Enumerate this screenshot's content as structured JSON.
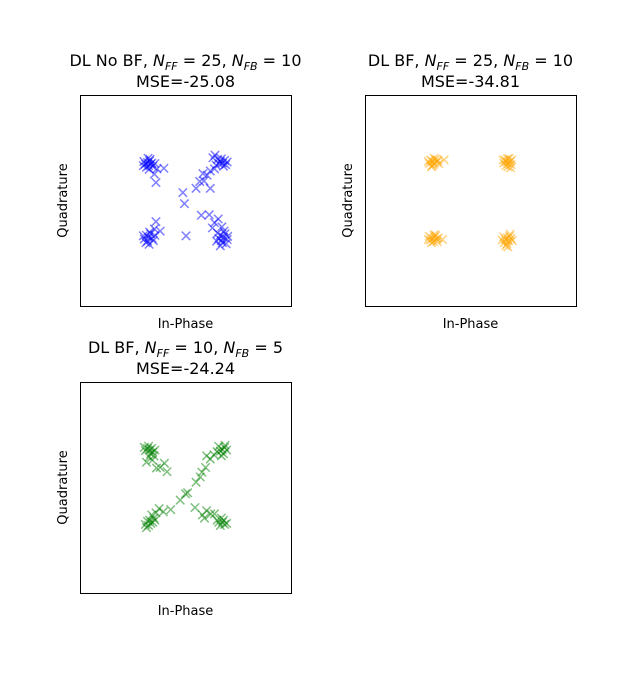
{
  "figure": {
    "background": "#ffffff"
  },
  "chart_data": [
    {
      "type": "scatter",
      "title_prefix": "DL No BF, ",
      "title_math": [
        {
          "sym": "N",
          "sub": "FF",
          "val": "25"
        },
        {
          "sym": "N",
          "sub": "FB",
          "val": "10"
        }
      ],
      "mse_label": "MSE=-25.08",
      "xlabel": "In-Phase",
      "ylabel": "Quadrature",
      "marker": "x",
      "color": "#0000ff",
      "xlim": [
        -2,
        2
      ],
      "ylim": [
        -2,
        2
      ],
      "ticks_visible": false,
      "points": [
        [
          -0.72,
          0.72
        ],
        [
          -0.68,
          0.75
        ],
        [
          -0.76,
          0.69
        ],
        [
          -0.7,
          0.66
        ],
        [
          -0.64,
          0.71
        ],
        [
          -0.79,
          0.74
        ],
        [
          -0.67,
          0.78
        ],
        [
          -0.74,
          0.63
        ],
        [
          -0.62,
          0.65
        ],
        [
          -0.8,
          0.66
        ],
        [
          -0.71,
          0.8
        ],
        [
          -0.66,
          0.69
        ],
        [
          -0.58,
          0.7
        ],
        [
          -0.69,
          0.59
        ],
        [
          -0.54,
          0.6
        ],
        [
          -0.59,
          0.5
        ],
        [
          -0.41,
          0.61
        ],
        [
          -0.56,
          0.34
        ],
        [
          0.66,
          0.74
        ],
        [
          0.7,
          0.71
        ],
        [
          0.74,
          0.76
        ],
        [
          0.63,
          0.7
        ],
        [
          0.76,
          0.68
        ],
        [
          0.68,
          0.79
        ],
        [
          0.72,
          0.65
        ],
        [
          0.61,
          0.78
        ],
        [
          0.79,
          0.73
        ],
        [
          0.58,
          0.67
        ],
        [
          0.52,
          0.81
        ],
        [
          0.55,
          0.6
        ],
        [
          0.47,
          0.56
        ],
        [
          0.41,
          0.48
        ],
        [
          0.33,
          0.51
        ],
        [
          0.35,
          0.37
        ],
        [
          0.27,
          0.36
        ],
        [
          0.2,
          0.23
        ],
        [
          0.47,
          0.23
        ],
        [
          0.56,
          0.86
        ],
        [
          -0.74,
          -0.66
        ],
        [
          -0.7,
          -0.7
        ],
        [
          -0.66,
          -0.63
        ],
        [
          -0.78,
          -0.73
        ],
        [
          -0.72,
          -0.77
        ],
        [
          -0.63,
          -0.72
        ],
        [
          -0.8,
          -0.67
        ],
        [
          -0.68,
          -0.6
        ],
        [
          -0.61,
          -0.76
        ],
        [
          -0.75,
          -0.8
        ],
        [
          -0.58,
          -0.66
        ],
        [
          -0.69,
          -0.83
        ],
        [
          -0.56,
          -0.4
        ],
        [
          -0.59,
          -0.54
        ],
        [
          -0.48,
          -0.58
        ],
        [
          -0.05,
          0.15
        ],
        [
          -0.02,
          -0.06
        ],
        [
          0.01,
          -0.67
        ],
        [
          0.66,
          -0.66
        ],
        [
          0.72,
          -0.7
        ],
        [
          0.75,
          -0.63
        ],
        [
          0.68,
          -0.76
        ],
        [
          0.63,
          -0.72
        ],
        [
          0.79,
          -0.74
        ],
        [
          0.7,
          -0.8
        ],
        [
          0.61,
          -0.62
        ],
        [
          0.77,
          -0.82
        ],
        [
          0.66,
          -0.86
        ],
        [
          0.73,
          -0.58
        ],
        [
          0.8,
          -0.68
        ],
        [
          0.59,
          -0.77
        ],
        [
          0.69,
          -0.5
        ],
        [
          0.51,
          -0.52
        ],
        [
          0.45,
          -0.27
        ],
        [
          0.62,
          -0.35
        ],
        [
          0.55,
          -0.42
        ],
        [
          0.3,
          -0.28
        ]
      ]
    },
    {
      "type": "scatter",
      "title_prefix": "DL BF, ",
      "title_math": [
        {
          "sym": "N",
          "sub": "FF",
          "val": "25"
        },
        {
          "sym": "N",
          "sub": "FB",
          "val": "10"
        }
      ],
      "mse_label": "MSE=-34.81",
      "xlabel": "In-Phase",
      "ylabel": "Quadrature",
      "marker": "x",
      "color": "#ffa500",
      "xlim": [
        -2,
        2
      ],
      "ylim": [
        -2,
        2
      ],
      "ticks_visible": false,
      "points": [
        [
          -0.72,
          0.74
        ],
        [
          -0.68,
          0.71
        ],
        [
          -0.76,
          0.77
        ],
        [
          -0.7,
          0.68
        ],
        [
          -0.64,
          0.73
        ],
        [
          -0.78,
          0.7
        ],
        [
          -0.66,
          0.78
        ],
        [
          -0.73,
          0.66
        ],
        [
          -0.6,
          0.7
        ],
        [
          -0.8,
          0.74
        ],
        [
          -0.69,
          0.8
        ],
        [
          -0.74,
          0.64
        ],
        [
          -0.62,
          0.76
        ],
        [
          -0.5,
          0.77
        ],
        [
          0.69,
          0.73
        ],
        [
          0.72,
          0.7
        ],
        [
          0.66,
          0.76
        ],
        [
          0.75,
          0.74
        ],
        [
          0.63,
          0.71
        ],
        [
          0.7,
          0.79
        ],
        [
          0.77,
          0.68
        ],
        [
          0.67,
          0.66
        ],
        [
          0.73,
          0.8
        ],
        [
          0.62,
          0.77
        ],
        [
          0.78,
          0.77
        ],
        [
          0.71,
          0.64
        ],
        [
          0.76,
          0.62
        ],
        [
          -0.72,
          -0.72
        ],
        [
          -0.68,
          -0.69
        ],
        [
          -0.76,
          -0.75
        ],
        [
          -0.7,
          -0.78
        ],
        [
          -0.64,
          -0.73
        ],
        [
          -0.78,
          -0.68
        ],
        [
          -0.66,
          -0.66
        ],
        [
          -0.74,
          -0.8
        ],
        [
          -0.61,
          -0.71
        ],
        [
          -0.8,
          -0.74
        ],
        [
          -0.69,
          -0.65
        ],
        [
          -0.63,
          -0.78
        ],
        [
          -0.53,
          -0.74
        ],
        [
          0.7,
          -0.71
        ],
        [
          0.74,
          -0.68
        ],
        [
          0.66,
          -0.74
        ],
        [
          0.72,
          -0.77
        ],
        [
          0.77,
          -0.72
        ],
        [
          0.63,
          -0.69
        ],
        [
          0.69,
          -0.82
        ],
        [
          0.75,
          -0.64
        ],
        [
          0.64,
          -0.8
        ],
        [
          0.79,
          -0.76
        ],
        [
          0.6,
          -0.75
        ],
        [
          0.67,
          -0.86
        ],
        [
          0.71,
          -0.88
        ]
      ]
    },
    {
      "type": "scatter",
      "title_prefix": "DL BF, ",
      "title_math": [
        {
          "sym": "N",
          "sub": "FF",
          "val": "10"
        },
        {
          "sym": "N",
          "sub": "FB",
          "val": "5"
        }
      ],
      "mse_label": "MSE=-24.24",
      "xlabel": "In-Phase",
      "ylabel": "Quadrature",
      "marker": "x",
      "color": "#008000",
      "xlim": [
        -2,
        2
      ],
      "ylim": [
        -2,
        2
      ],
      "ticks_visible": false,
      "points": [
        [
          -0.72,
          0.74
        ],
        [
          -0.68,
          0.71
        ],
        [
          -0.76,
          0.7
        ],
        [
          -0.64,
          0.74
        ],
        [
          -0.7,
          0.78
        ],
        [
          -0.62,
          0.67
        ],
        [
          -0.78,
          0.76
        ],
        [
          -0.66,
          0.64
        ],
        [
          -0.58,
          0.71
        ],
        [
          -0.69,
          0.58
        ],
        [
          -0.63,
          0.52
        ],
        [
          -0.74,
          0.48
        ],
        [
          -0.55,
          0.37
        ],
        [
          -0.48,
          0.38
        ],
        [
          -0.4,
          0.46
        ],
        [
          -0.35,
          0.3
        ],
        [
          -0.6,
          0.6
        ],
        [
          0.7,
          0.72
        ],
        [
          0.74,
          0.76
        ],
        [
          0.66,
          0.69
        ],
        [
          0.72,
          0.64
        ],
        [
          0.78,
          0.71
        ],
        [
          0.63,
          0.78
        ],
        [
          0.68,
          0.6
        ],
        [
          0.75,
          0.8
        ],
        [
          0.6,
          0.68
        ],
        [
          0.54,
          0.62
        ],
        [
          0.47,
          0.54
        ],
        [
          0.4,
          0.6
        ],
        [
          0.38,
          0.38
        ],
        [
          0.31,
          0.29
        ],
        [
          0.2,
          0.1
        ],
        [
          0.28,
          0.2
        ],
        [
          -0.7,
          -0.72
        ],
        [
          -0.66,
          -0.68
        ],
        [
          -0.74,
          -0.76
        ],
        [
          -0.62,
          -0.66
        ],
        [
          -0.68,
          -0.62
        ],
        [
          -0.72,
          -0.64
        ],
        [
          -0.6,
          -0.58
        ],
        [
          -0.56,
          -0.48
        ],
        [
          -0.5,
          -0.4
        ],
        [
          -0.42,
          -0.46
        ],
        [
          -0.28,
          -0.42
        ],
        [
          -0.64,
          -0.52
        ],
        [
          -0.58,
          -0.62
        ],
        [
          -0.76,
          -0.7
        ],
        [
          0.7,
          -0.66
        ],
        [
          0.74,
          -0.7
        ],
        [
          0.66,
          -0.72
        ],
        [
          0.72,
          -0.62
        ],
        [
          0.78,
          -0.68
        ],
        [
          0.63,
          -0.66
        ],
        [
          0.68,
          -0.58
        ],
        [
          0.6,
          -0.62
        ],
        [
          0.55,
          -0.5
        ],
        [
          0.48,
          -0.5
        ],
        [
          0.4,
          -0.44
        ],
        [
          0.36,
          -0.58
        ],
        [
          0.18,
          -0.38
        ],
        [
          0.04,
          -0.1
        ],
        [
          0.0,
          -0.12
        ],
        [
          -0.1,
          -0.24
        ],
        [
          0.32,
          -0.52
        ]
      ]
    }
  ]
}
